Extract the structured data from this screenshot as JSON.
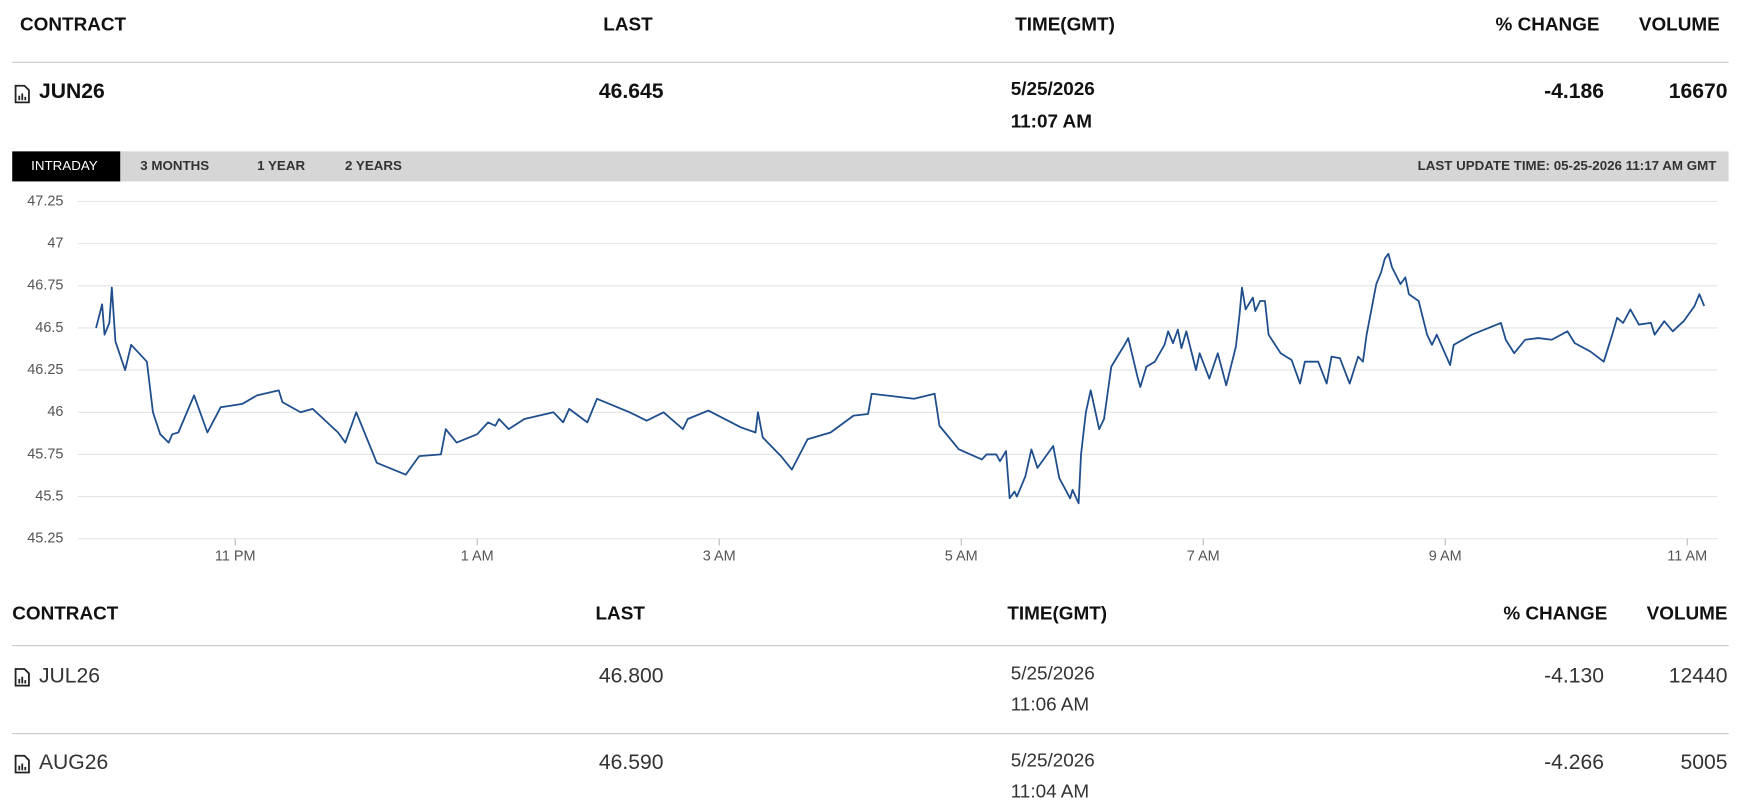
{
  "header": {
    "columns": [
      "CONTRACT",
      "LAST",
      "TIME(GMT)",
      "% CHANGE",
      "VOLUME"
    ]
  },
  "main_row": {
    "contract": "JUN26",
    "last": "46.645",
    "date": "5/25/2026",
    "time": "11:07 AM",
    "change": "-4.186",
    "volume": "16670"
  },
  "tabs": [
    "INTRADAY",
    "3 MONTHS",
    "1 YEAR",
    "2 YEARS"
  ],
  "active_tab": 0,
  "last_update": "LAST UPDATE TIME: 05-25-2026 11:17 AM GMT",
  "chart_data": {
    "type": "line",
    "color": "#1f4e8c",
    "grid": true,
    "xlim": [
      21.7,
      35.25
    ],
    "ylim": [
      45.25,
      47.25
    ],
    "xticks": [
      {
        "value": 23,
        "label": "11 PM"
      },
      {
        "value": 25,
        "label": "1 AM"
      },
      {
        "value": 27,
        "label": "3 AM"
      },
      {
        "value": 29,
        "label": "5 AM"
      },
      {
        "value": 31,
        "label": "7 AM"
      },
      {
        "value": 33,
        "label": "9 AM"
      },
      {
        "value": 35,
        "label": "11 AM"
      }
    ],
    "yticks": [
      45.25,
      45.5,
      45.75,
      46,
      46.25,
      46.5,
      46.75,
      47,
      47.25
    ],
    "x": [
      21.85,
      21.9,
      21.92,
      21.96,
      21.98,
      22.01,
      22.09,
      22.14,
      22.27,
      22.32,
      22.38,
      22.45,
      22.48,
      22.53,
      22.66,
      22.77,
      22.88,
      23.06,
      23.18,
      23.36,
      23.39,
      23.54,
      23.64,
      23.85,
      23.91,
      24.0,
      24.17,
      24.41,
      24.52,
      24.7,
      24.74,
      24.83,
      25.0,
      25.09,
      25.15,
      25.18,
      25.26,
      25.39,
      25.63,
      25.71,
      25.76,
      25.91,
      25.99,
      26.26,
      26.4,
      26.54,
      26.7,
      26.74,
      26.91,
      27.18,
      27.3,
      27.32,
      27.36,
      27.51,
      27.6,
      27.73,
      27.92,
      28.11,
      28.23,
      28.26,
      28.61,
      28.78,
      28.82,
      28.98,
      29.17,
      29.21,
      29.29,
      29.32,
      29.37,
      29.4,
      29.44,
      29.46,
      29.53,
      29.58,
      29.63,
      29.76,
      29.81,
      29.9,
      29.92,
      29.97,
      29.99,
      30.03,
      30.07,
      30.14,
      30.18,
      30.24,
      30.29,
      30.35,
      30.38,
      30.46,
      30.48,
      30.53,
      30.6,
      30.68,
      30.71,
      30.75,
      30.79,
      30.82,
      30.86,
      30.94,
      30.97,
      31.05,
      31.12,
      31.19,
      31.27,
      31.3,
      31.32,
      31.35,
      31.41,
      31.43,
      31.47,
      31.51,
      31.54,
      31.64,
      31.73,
      31.8,
      31.84,
      31.95,
      32.02,
      32.06,
      32.13,
      32.21,
      32.28,
      32.32,
      32.35,
      32.39,
      32.43,
      32.47,
      32.5,
      32.53,
      32.56,
      32.63,
      32.67,
      32.7,
      32.78,
      32.85,
      32.89,
      32.93,
      33.04,
      33.07,
      33.22,
      33.46,
      33.5,
      33.57,
      33.66,
      33.77,
      33.88,
      34.01,
      34.07,
      34.2,
      34.31,
      34.38,
      34.42,
      34.47,
      34.53,
      34.6,
      34.7,
      34.73,
      34.81,
      34.88,
      34.97,
      35.06,
      35.1,
      35.14
    ],
    "values": [
      46.5,
      46.64,
      46.46,
      46.53,
      46.74,
      46.42,
      46.25,
      46.4,
      46.3,
      46.0,
      45.87,
      45.82,
      45.87,
      45.88,
      46.1,
      45.88,
      46.03,
      46.05,
      46.1,
      46.13,
      46.06,
      46.0,
      46.02,
      45.88,
      45.82,
      46.0,
      45.7,
      45.63,
      45.74,
      45.75,
      45.9,
      45.82,
      45.87,
      45.94,
      45.92,
      45.96,
      45.9,
      45.96,
      46.0,
      45.94,
      46.02,
      45.94,
      46.08,
      46.0,
      45.95,
      46.0,
      45.9,
      45.96,
      46.01,
      45.91,
      45.88,
      46.0,
      45.85,
      45.74,
      45.66,
      45.84,
      45.88,
      45.98,
      45.99,
      46.11,
      46.08,
      46.11,
      45.92,
      45.78,
      45.72,
      45.75,
      45.75,
      45.71,
      45.77,
      45.49,
      45.53,
      45.5,
      45.62,
      45.78,
      45.67,
      45.8,
      45.61,
      45.49,
      45.54,
      45.46,
      45.75,
      46.0,
      46.13,
      45.9,
      45.96,
      46.27,
      46.33,
      46.4,
      46.44,
      46.2,
      46.15,
      46.27,
      46.3,
      46.4,
      46.48,
      46.41,
      46.49,
      46.38,
      46.48,
      46.25,
      46.35,
      46.2,
      46.35,
      46.16,
      46.39,
      46.58,
      46.74,
      46.61,
      46.68,
      46.6,
      46.66,
      46.66,
      46.46,
      46.35,
      46.31,
      46.17,
      46.3,
      46.3,
      46.17,
      46.33,
      46.32,
      46.17,
      46.33,
      46.3,
      46.46,
      46.61,
      46.76,
      46.83,
      46.91,
      46.94,
      46.86,
      46.76,
      46.8,
      46.7,
      46.66,
      46.46,
      46.4,
      46.46,
      46.28,
      46.4,
      46.46,
      46.53,
      46.43,
      46.35,
      46.43,
      46.44,
      46.43,
      46.48,
      46.41,
      46.36,
      46.3,
      46.46,
      46.56,
      46.53,
      46.61,
      46.52,
      46.53,
      46.46,
      46.54,
      46.48,
      46.54,
      46.63,
      46.7,
      46.63
    ]
  },
  "table": {
    "columns": [
      "CONTRACT",
      "LAST",
      "TIME(GMT)",
      "% CHANGE",
      "VOLUME"
    ],
    "rows": [
      [
        "JUL26",
        "46.800",
        "5/25/2026",
        "11:06 AM",
        "-4.130",
        "12440"
      ],
      [
        "AUG26",
        "46.590",
        "5/25/2026",
        "11:04 AM",
        "-4.266",
        "5005"
      ]
    ]
  }
}
